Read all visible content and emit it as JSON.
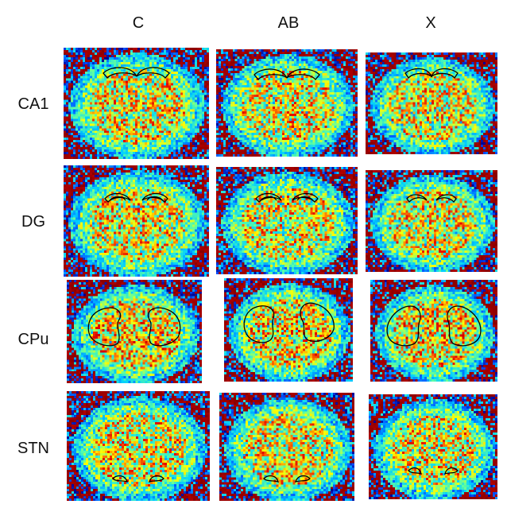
{
  "figure": {
    "columns": [
      "C",
      "AB",
      "X"
    ],
    "rows": [
      "CA1",
      "DG",
      "CPu",
      "STN"
    ]
  },
  "colors": {
    "background": "#ffffff",
    "colormap": [
      "#00008f",
      "#0050ff",
      "#00d0ff",
      "#60ff9f",
      "#ffff00",
      "#ff8000",
      "#e00000",
      "#800000"
    ],
    "roi_outline": "#000000"
  },
  "icons": [
    "brain-slice-image",
    "roi-outline"
  ]
}
